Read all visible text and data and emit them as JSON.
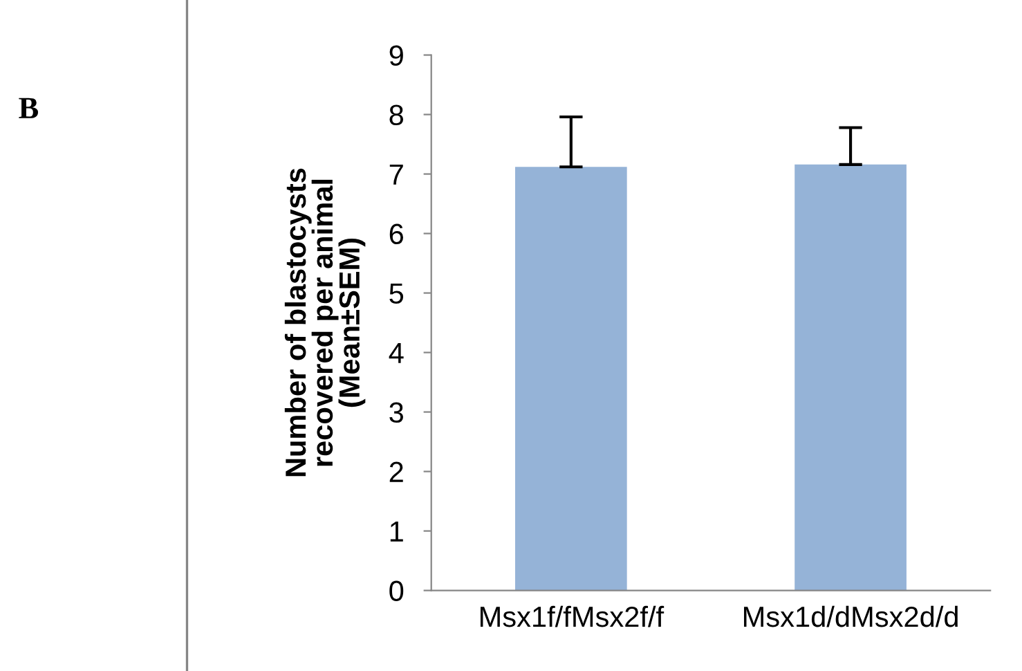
{
  "chart_data": {
    "type": "bar",
    "categories": [
      "Msx1f/fMsx2f/f",
      "Msx1d/dMsx2d/d"
    ],
    "values": [
      7.12,
      7.16
    ],
    "errors": [
      [
        7.12,
        7.96
      ],
      [
        7.16,
        7.78
      ]
    ],
    "color": "#95b3d7",
    "ylabel": "Number of blastocysts\nrecovered per animal\n(Mean±SEM)",
    "ylim": [
      0,
      9
    ],
    "yticks": [
      0,
      1,
      2,
      3,
      4,
      5,
      6,
      7,
      8,
      9
    ],
    "grid": false,
    "legend": false,
    "annotations": [
      "B"
    ]
  }
}
